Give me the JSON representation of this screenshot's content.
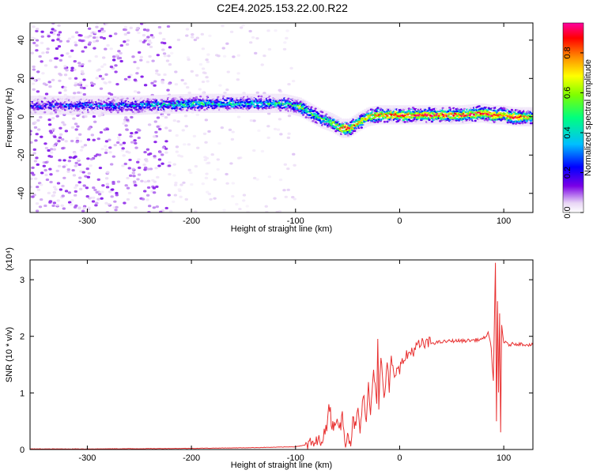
{
  "figure": {
    "title": "C2E4.2025.153.22.00.R22"
  },
  "chart_data": [
    {
      "type": "heatmap",
      "title": "C2E4.2025.153.22.00.R22",
      "xlabel": "Height of straight line (km)",
      "ylabel": "Frequency (Hz)",
      "xlim": [
        -355,
        128
      ],
      "ylim": [
        -50,
        49
      ],
      "x_ticks": [
        -300,
        -200,
        -100,
        0,
        100
      ],
      "x_tick_labels": [
        "-300",
        "-200",
        "-100",
        "0",
        "100"
      ],
      "y_ticks": [
        -40,
        -20,
        0,
        20,
        40
      ],
      "y_tick_labels": [
        "-40",
        "-20",
        "0",
        "20",
        "40"
      ],
      "grid": false,
      "colorbar": {
        "label": "Normalized spectral amplitude",
        "range": [
          0.0,
          0.95
        ],
        "ticks": [
          0.0,
          0.2,
          0.4,
          0.6,
          0.8
        ],
        "tick_labels": [
          "0.0",
          "0.2",
          "0.4",
          "0.6",
          "0.8"
        ],
        "colormap": [
          "#ffffff",
          "#e8d6f5",
          "#7a00e6",
          "#0000ff",
          "#00bfff",
          "#00ff7f",
          "#7fff00",
          "#ffff00",
          "#ff8c00",
          "#ff0000",
          "#ff00a0"
        ]
      },
      "ridge": {
        "x": [
          -355,
          -300,
          -250,
          -200,
          -150,
          -110,
          -95,
          -85,
          -75,
          -65,
          -55,
          -48,
          -40,
          -30,
          -20,
          0,
          30,
          60,
          80,
          90,
          100,
          110,
          128
        ],
        "freq": [
          6,
          6,
          6,
          7,
          7,
          7,
          5,
          2,
          -1,
          -3,
          -6,
          -6,
          -3,
          0,
          1,
          1,
          1,
          1,
          2,
          1,
          1,
          0,
          0
        ],
        "amplitude": [
          0.25,
          0.3,
          0.35,
          0.45,
          0.45,
          0.45,
          0.55,
          0.5,
          0.5,
          0.6,
          0.8,
          0.85,
          0.7,
          0.75,
          0.8,
          0.85,
          0.85,
          0.85,
          0.85,
          0.9,
          0.8,
          0.9,
          0.7
        ]
      },
      "noise_region_x": [
        -355,
        -100
      ]
    },
    {
      "type": "line",
      "xlabel": "Height of straight line (km)",
      "ylabel": "SNR (10 * v/v)",
      "y_multiplier": "(x10⁴)",
      "xlim": [
        -355,
        128
      ],
      "ylim": [
        0,
        3.35
      ],
      "x_ticks": [
        -300,
        -200,
        -100,
        0,
        100
      ],
      "x_tick_labels": [
        "-300",
        "-200",
        "-100",
        "0",
        "100"
      ],
      "y_ticks": [
        0,
        1,
        2,
        3
      ],
      "y_tick_labels": [
        "0",
        "1",
        "2",
        "3"
      ],
      "grid": false,
      "color": "#e83030",
      "series": [
        {
          "x": [
            -355,
            -300,
            -250,
            -200,
            -150,
            -120,
            -100,
            -90,
            -80,
            -75,
            -70,
            -68,
            -65,
            -62,
            -60,
            -58,
            -55,
            -52,
            -50,
            -47,
            -45,
            -42,
            -40,
            -38,
            -35,
            -32,
            -30,
            -28,
            -25,
            -22,
            -21,
            -20,
            -18,
            -15,
            -12,
            -10,
            -8,
            -5,
            -2,
            0,
            5,
            10,
            20,
            30,
            40,
            50,
            60,
            70,
            80,
            85,
            88,
            90,
            92,
            93,
            94,
            95,
            96,
            97,
            98,
            100,
            105,
            110,
            128
          ],
          "y": [
            0.01,
            0.01,
            0.015,
            0.02,
            0.03,
            0.04,
            0.05,
            0.08,
            0.12,
            0.2,
            0.35,
            0.9,
            0.4,
            0.5,
            0.6,
            0.3,
            0.6,
            0.15,
            0.3,
            0.12,
            0.5,
            0.4,
            0.7,
            0.3,
            1.0,
            0.4,
            1.3,
            0.6,
            1.45,
            0.9,
            2.0,
            0.8,
            1.6,
            0.9,
            1.45,
            1.1,
            1.6,
            1.2,
            1.55,
            1.45,
            1.6,
            1.72,
            1.85,
            1.88,
            1.9,
            1.92,
            1.92,
            1.93,
            1.95,
            2.05,
            1.8,
            1.2,
            3.3,
            0.5,
            2.6,
            1.0,
            2.4,
            0.3,
            2.2,
            1.9,
            1.85,
            1.87,
            1.85
          ]
        }
      ]
    }
  ]
}
